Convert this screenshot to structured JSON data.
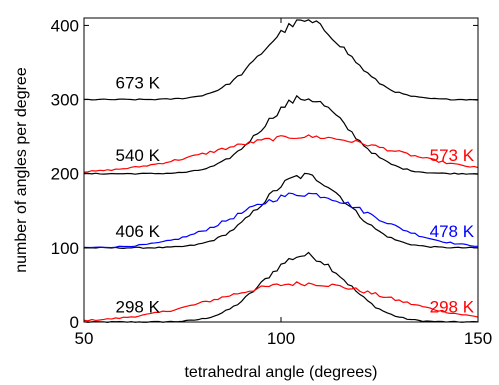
{
  "chart_data": {
    "type": "line",
    "title": "",
    "xlabel": "tetrahedral angle (degrees)",
    "ylabel": "number of angles per degree",
    "xlim": [
      50,
      150
    ],
    "ylim": [
      0,
      410
    ],
    "xticks": [
      50,
      100,
      150
    ],
    "yticks": [
      0,
      100,
      200,
      300,
      400
    ],
    "grid": false,
    "legend": "none",
    "series": [
      {
        "name": "298 K",
        "color": "#000000",
        "baseline": 0,
        "peak_x": 106,
        "peak_height": 90,
        "sigma": 10.5
      },
      {
        "name": "298 K",
        "color": "#ff0000",
        "baseline": 0,
        "peak_x": 106,
        "peak_height": 52,
        "sigma": 22
      },
      {
        "name": "406 K",
        "color": "#000000",
        "baseline": 100,
        "peak_x": 106,
        "peak_height": 97,
        "sigma": 11
      },
      {
        "name": "478 K",
        "color": "#0000ff",
        "baseline": 100,
        "peak_x": 106,
        "peak_height": 73,
        "sigma": 17
      },
      {
        "name": "540 K",
        "color": "#000000",
        "baseline": 200,
        "peak_x": 106,
        "peak_height": 102,
        "sigma": 10.8
      },
      {
        "name": "573 K",
        "color": "#ff0000",
        "baseline": 200,
        "peak_x": 106,
        "peak_height": 50,
        "sigma": 23
      },
      {
        "name": "673 K",
        "color": "#000000",
        "baseline": 300,
        "peak_x": 106,
        "peak_height": 105,
        "sigma": 10.8
      }
    ],
    "annotations": [
      {
        "text": "673 K",
        "color": "#000000",
        "x": 58,
        "y": 323,
        "anchor": "start"
      },
      {
        "text": "540 K",
        "color": "#000000",
        "x": 58,
        "y": 225,
        "anchor": "start"
      },
      {
        "text": "573 K",
        "color": "#ff0000",
        "x": 149,
        "y": 225,
        "anchor": "end"
      },
      {
        "text": "406 K",
        "color": "#000000",
        "x": 58,
        "y": 123,
        "anchor": "start"
      },
      {
        "text": "478 K",
        "color": "#0000ff",
        "x": 149,
        "y": 123,
        "anchor": "end"
      },
      {
        "text": "298 K",
        "color": "#000000",
        "x": 58,
        "y": 21,
        "anchor": "start"
      },
      {
        "text": "298 K",
        "color": "#ff0000",
        "x": 149,
        "y": 21,
        "anchor": "end"
      }
    ]
  }
}
